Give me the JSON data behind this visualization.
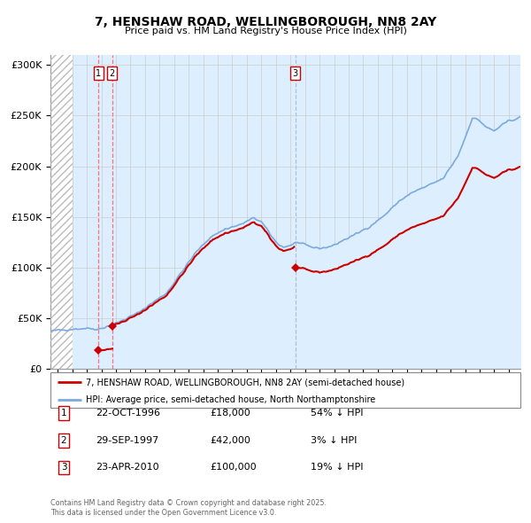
{
  "title": "7, HENSHAW ROAD, WELLINGBOROUGH, NN8 2AY",
  "subtitle": "Price paid vs. HM Land Registry's House Price Index (HPI)",
  "legend_line1": "7, HENSHAW ROAD, WELLINGBOROUGH, NN8 2AY (semi-detached house)",
  "legend_line2": "HPI: Average price, semi-detached house, North Northamptonshire",
  "footer1": "Contains HM Land Registry data © Crown copyright and database right 2025.",
  "footer2": "This data is licensed under the Open Government Licence v3.0.",
  "sale_color": "#cc0000",
  "hpi_color": "#7aaadd",
  "hpi_fill_color": "#ddeeff",
  "annotations": [
    {
      "label": "1",
      "date_x": 1996.81,
      "price": 18000
    },
    {
      "label": "2",
      "date_x": 1997.75,
      "price": 42000
    },
    {
      "label": "3",
      "date_x": 2010.32,
      "price": 100000
    }
  ],
  "table_rows": [
    {
      "num": "1",
      "date": "22-OCT-1996",
      "price": "£18,000",
      "hpi_diff": "54% ↓ HPI"
    },
    {
      "num": "2",
      "date": "29-SEP-1997",
      "price": "£42,000",
      "hpi_diff": "3% ↓ HPI"
    },
    {
      "num": "3",
      "date": "23-APR-2010",
      "price": "£100,000",
      "hpi_diff": "19% ↓ HPI"
    }
  ],
  "ylim": [
    0,
    310000
  ],
  "xlim": [
    1993.5,
    2025.8
  ],
  "yticks": [
    0,
    50000,
    100000,
    150000,
    200000,
    250000,
    300000
  ],
  "ytick_labels": [
    "£0",
    "£50K",
    "£100K",
    "£150K",
    "£200K",
    "£250K",
    "£300K"
  ],
  "sale_dates": [
    1996.81,
    1997.75,
    2010.32
  ],
  "sale_prices": [
    18000,
    42000,
    100000
  ],
  "hatch_end": 1995.0
}
